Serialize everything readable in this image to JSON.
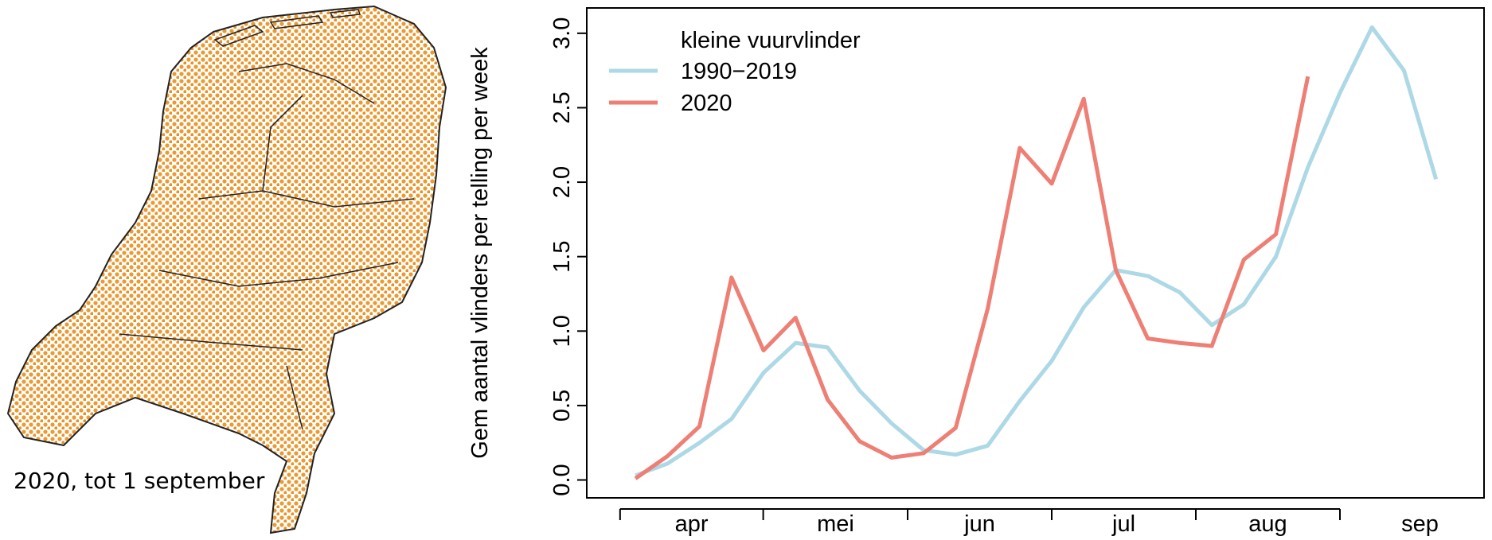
{
  "map_caption": "2020, tot 1 september",
  "chart_data": {
    "type": "line",
    "legend_title": "kleine vuurvlinder",
    "y_label": "Gem aantal vlinders per telling per week",
    "x": [
      14,
      15,
      16,
      17,
      18,
      19,
      20,
      21,
      22,
      23,
      24,
      25,
      26,
      27,
      28,
      29,
      30,
      31,
      32,
      33,
      34,
      35,
      36,
      37,
      38,
      39
    ],
    "series": [
      {
        "name": "1990−2019",
        "color": "#add8e6",
        "values": [
          0.03,
          0.11,
          0.25,
          0.41,
          0.72,
          0.92,
          0.89,
          0.6,
          0.38,
          0.2,
          0.17,
          0.23,
          0.53,
          0.8,
          1.16,
          1.41,
          1.37,
          1.26,
          1.04,
          1.18,
          1.5,
          2.1,
          2.6,
          3.04,
          2.75,
          2.02
        ]
      },
      {
        "name": "2020",
        "color": "#ee7f74",
        "values": [
          0.01,
          0.16,
          0.36,
          1.36,
          0.87,
          1.09,
          0.54,
          0.26,
          0.15,
          0.18,
          0.35,
          1.15,
          2.23,
          1.99,
          2.56,
          1.41,
          0.95,
          0.92,
          0.9,
          1.48,
          1.65,
          2.71,
          null,
          null,
          null,
          null
        ]
      }
    ],
    "xlim": [
      12.48,
      40.5
    ],
    "xticks": [
      13.52,
      17.99,
      22.5,
      27.0,
      31.5,
      36.0
    ],
    "month_labels": [
      {
        "value": 15.75,
        "label": "apr"
      },
      {
        "value": 20.25,
        "label": "mei"
      },
      {
        "value": 24.75,
        "label": "jun"
      },
      {
        "value": 29.25,
        "label": "jul"
      },
      {
        "value": 33.75,
        "label": "aug"
      },
      {
        "value": 38.5,
        "label": "sep"
      }
    ],
    "ylim": [
      -0.12,
      3.17
    ],
    "yticks": [
      {
        "value": 0,
        "label": "0.0"
      },
      {
        "value": 0.5,
        "label": "0.5"
      },
      {
        "value": 1,
        "label": "1.0"
      },
      {
        "value": 1.5,
        "label": "1.5"
      },
      {
        "value": 2,
        "label": "2.0"
      },
      {
        "value": 2.5,
        "label": "2.5"
      },
      {
        "value": 3,
        "label": "3.0"
      }
    ],
    "legend": "top-left"
  }
}
